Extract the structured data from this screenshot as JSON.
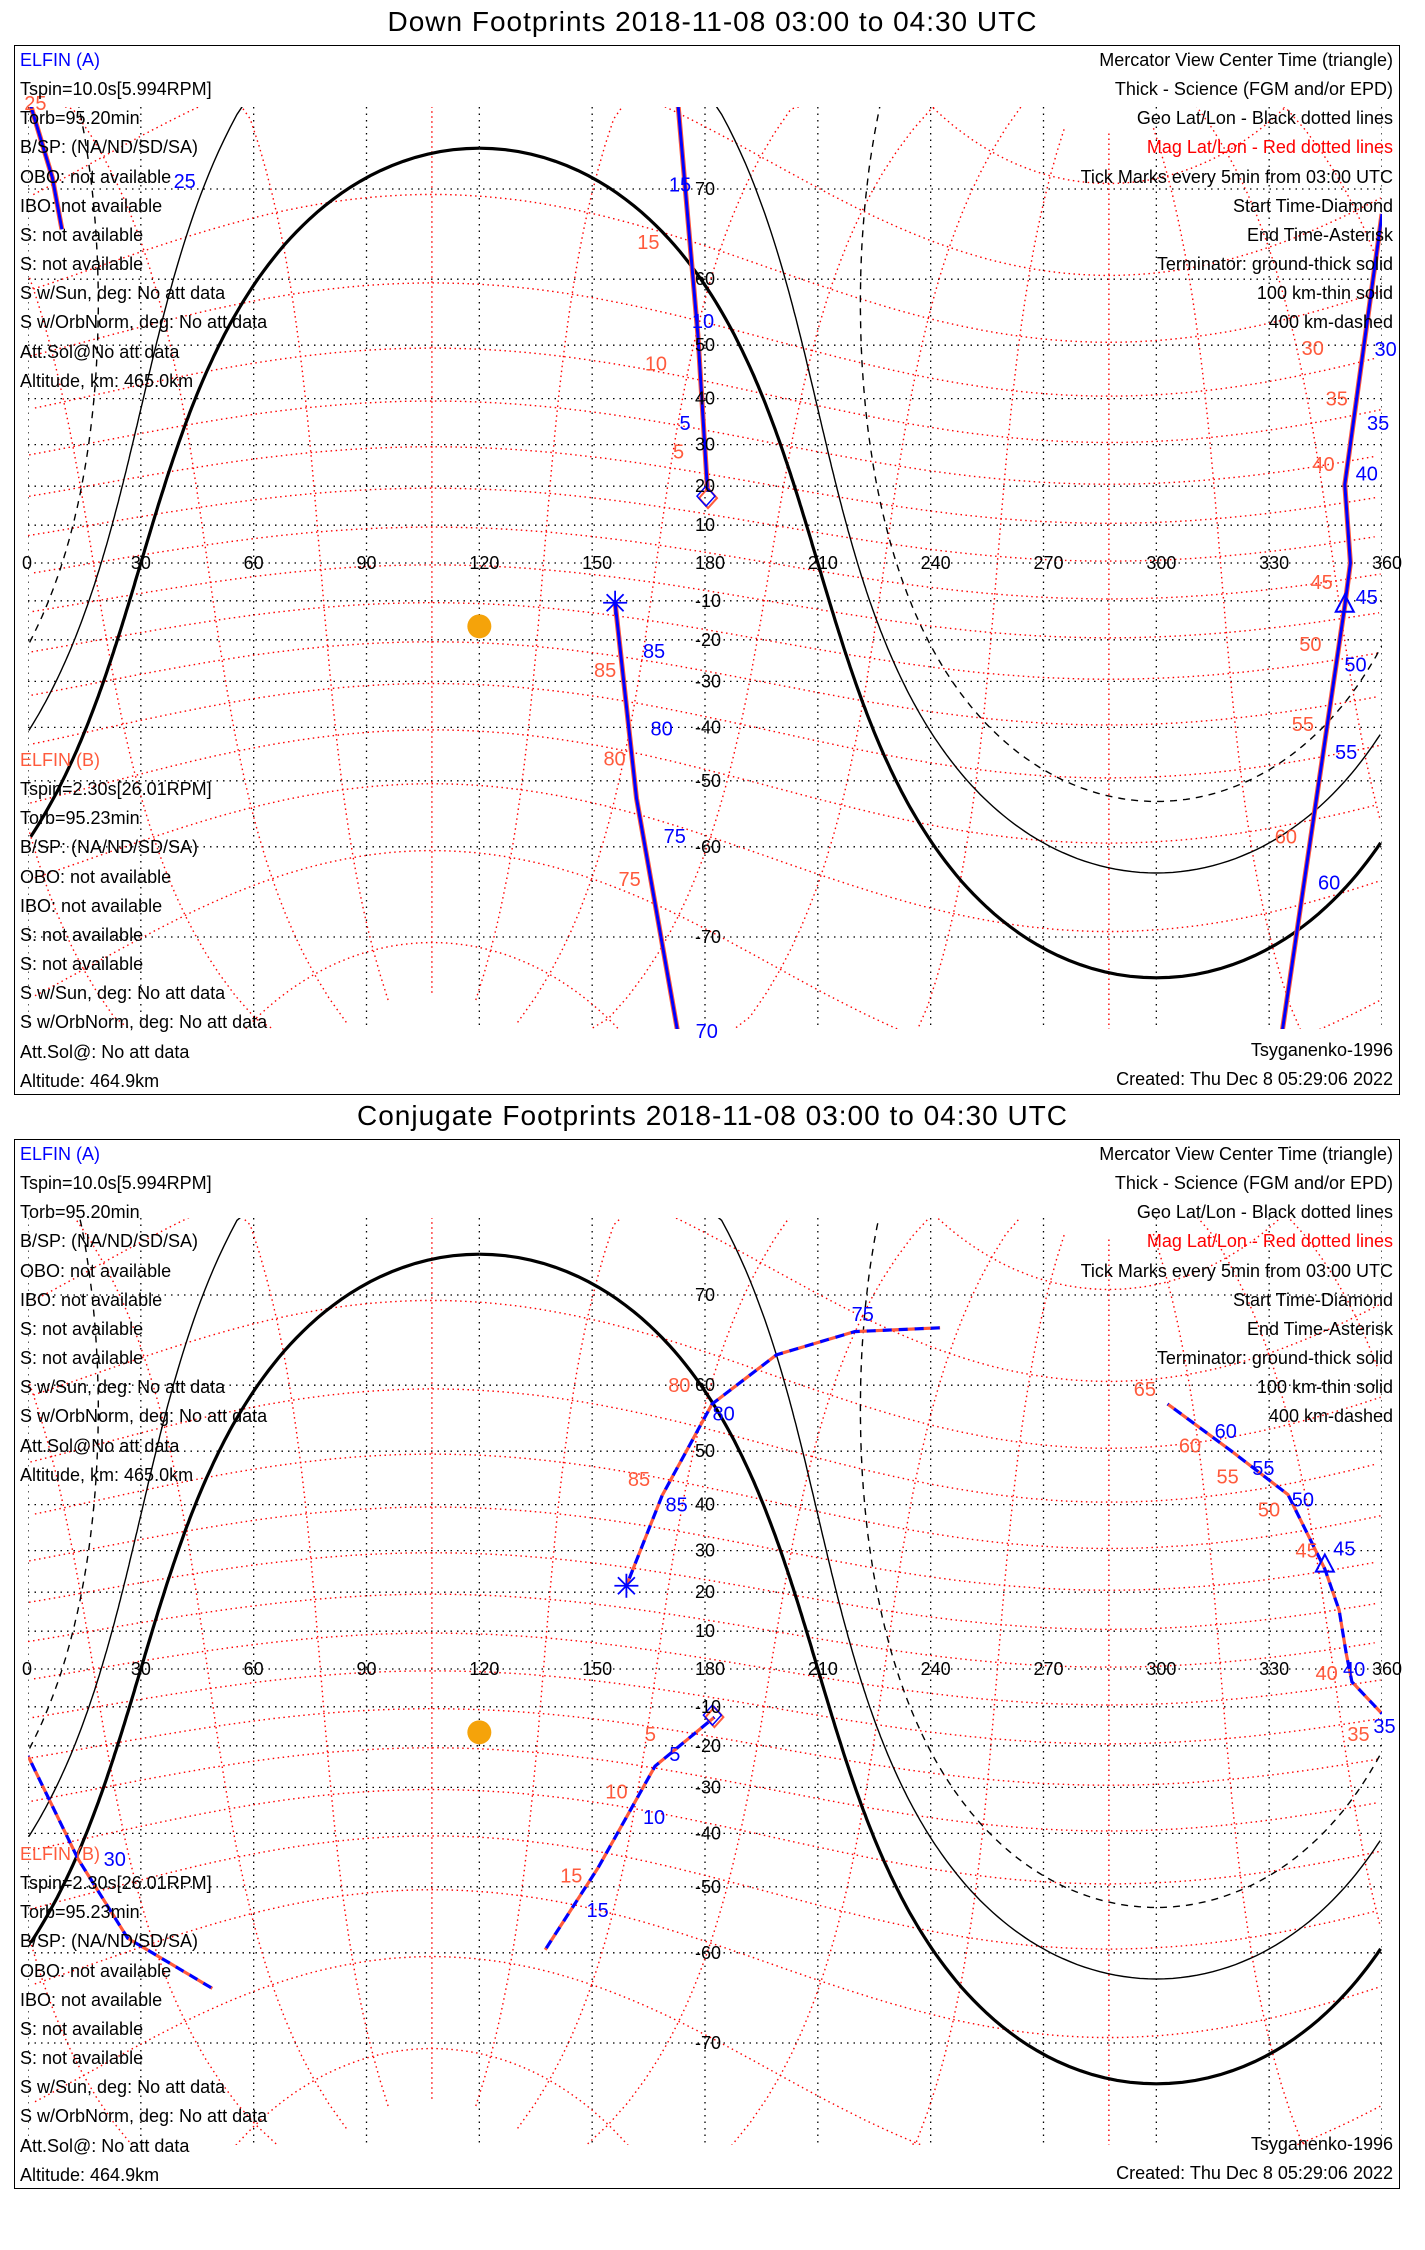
{
  "panels": [
    {
      "title": "Down Footprints 2018-11-08 03:00 to 04:30 UTC",
      "sat_a": {
        "name": "ELFIN (A)",
        "lines": [
          "Tspin=10.0s[5.994RPM]",
          "Torb=95.20min",
          "B/SP: (NA/ND/SD/SA)",
          "OBO: not available",
          "IBO: not available",
          "S: not available",
          "S: not available",
          "S w/Sun, deg: No att data",
          "S w/OrbNorm, deg: No att data",
          "Att.Sol@No att data",
          "Altitude, km: 465.0km"
        ]
      },
      "sat_b": {
        "name": "ELFIN (B)",
        "lines": [
          "Tspin=2.30s[26.01RPM]",
          "Torb=95.23min",
          "B/SP: (NA/ND/SD/SA)",
          "OBO: not available",
          "IBO: not available",
          "S: not available",
          "S: not available",
          "S w/Sun, deg: No att data",
          "S w/OrbNorm, deg: No att data",
          "Att.Sol@: No att data",
          "Altitude: 464.9km"
        ]
      },
      "legend": [
        "Mercator View Center Time (triangle)",
        "Thick - Science (FGM and/or EPD)",
        "Geo Lat/Lon - Black dotted lines",
        "Mag Lat/Lon - Red dotted lines",
        "Tick Marks every 5min from 03:00 UTC",
        "Start Time-Diamond",
        "End Time-Asterisk",
        "Terminator: ground-thick solid",
        "100 km-thin solid",
        "400 km-dashed"
      ],
      "model": "Tsyganenko-1996",
      "created": "Created: Thu Dec  8 05:29:06 2022"
    },
    {
      "title": "Conjugate Footprints 2018-11-08 03:00 to 04:30 UTC",
      "sat_a": {
        "name": "ELFIN (A)",
        "lines": [
          "Tspin=10.0s[5.994RPM]",
          "Torb=95.20min",
          "B/SP: (NA/ND/SD/SA)",
          "OBO: not available",
          "IBO: not available",
          "S: not available",
          "S: not available",
          "S w/Sun, deg: No att data",
          "S w/OrbNorm, deg: No att data",
          "Att.Sol@No att data",
          "Altitude, km: 465.0km"
        ]
      },
      "sat_b": {
        "name": "ELFIN (B)",
        "lines": [
          "Tspin=2.30s[26.01RPM]",
          "Torb=95.23min",
          "B/SP: (NA/ND/SD/SA)",
          "OBO: not available",
          "IBO: not available",
          "S: not available",
          "S: not available",
          "S w/Sun, deg: No att data",
          "S w/OrbNorm, deg: No att data",
          "Att.Sol@: No att data",
          "Altitude: 464.9km"
        ]
      },
      "legend": [
        "Mercator View Center Time (triangle)",
        "Thick - Science (FGM and/or EPD)",
        "Geo Lat/Lon - Black dotted lines",
        "Mag Lat/Lon - Red dotted lines",
        "Tick Marks every 5min from 03:00 UTC",
        "Start Time-Diamond",
        "End Time-Asterisk",
        "Terminator: ground-thick solid",
        "100 km-thin solid",
        "400 km-dashed"
      ],
      "model": "Tsyganenko-1996",
      "created": "Created: Thu Dec  8 05:29:06 2022"
    }
  ],
  "colors": {
    "sat_a": "#0000ff",
    "sat_b": "#ff5a3c",
    "mag_grid": "#ff0000",
    "sun": "#f5a30a"
  },
  "chart_data": [
    {
      "type": "map",
      "projection": "mercator",
      "lon_range": [
        0,
        360
      ],
      "lon_ticks": [
        "0",
        "30",
        "60",
        "90",
        "120",
        "150",
        "180",
        "210",
        "240",
        "270",
        "300",
        "330",
        "360"
      ],
      "lat_ticks": [
        "70",
        "60",
        "50",
        "40",
        "30",
        "20",
        "10",
        "-10",
        "-20",
        "-30",
        "-40",
        "-50",
        "-60",
        "-70"
      ],
      "subsolar": {
        "lat": -16.6,
        "lon": 120
      },
      "terminator_offsets_deg": [
        0,
        10.1,
        20.0
      ],
      "style": "solid",
      "tracks": [
        {
          "points": [
            [
              0.5,
              78
            ],
            [
              6.5,
              71
            ],
            [
              9,
              66
            ]
          ]
        },
        {
          "points": [
            [
              172.8,
              78
            ],
            [
              178.1,
              51.7
            ],
            [
              180.7,
              18.6
            ]
          ]
        },
        {
          "points": [
            [
              156.1,
              -10.5
            ],
            [
              161.8,
              -52.9
            ],
            [
              172.8,
              -78
            ]
          ]
        },
        {
          "points": [
            [
              360,
              67.6
            ],
            [
              350.1,
              20.4
            ],
            [
              351.6,
              0
            ],
            [
              350.1,
              -11.3
            ],
            [
              333.4,
              -78
            ]
          ]
        }
      ],
      "markers": [
        {
          "kind": "diamond",
          "lon": 180.8,
          "lat": 17
        },
        {
          "kind": "asterisk",
          "lon": 156.1,
          "lat": -10.5
        },
        {
          "kind": "triangle",
          "lon": 350.1,
          "lat": -11.3
        }
      ],
      "labels": [
        {
          "text": "25",
          "lon": -1,
          "lat": 76.5,
          "c": "b"
        },
        {
          "text": "25",
          "lon": 6.8,
          "lat": 70.7,
          "c": "a"
        },
        {
          "text": "15",
          "lon": 172,
          "lat": 70.4,
          "c": "a"
        },
        {
          "text": "10",
          "lon": 176.5,
          "lat": 52,
          "c": "a"
        },
        {
          "text": "5",
          "lon": 178,
          "lat": 34.8,
          "c": "a"
        },
        {
          "text": "15",
          "lon": 162,
          "lat": 64.6,
          "c": "b"
        },
        {
          "text": "10",
          "lon": 164,
          "lat": 46.8,
          "c": "b"
        },
        {
          "text": "5",
          "lon": 171.5,
          "lat": 29.8,
          "c": "b"
        },
        {
          "text": "85",
          "lon": 163.5,
          "lat": -22.8,
          "c": "a"
        },
        {
          "text": "80",
          "lon": 165.5,
          "lat": -40.2,
          "c": "a"
        },
        {
          "text": "75",
          "lon": 169,
          "lat": -58.5,
          "c": "a"
        },
        {
          "text": "70",
          "lon": 177.5,
          "lat": -77,
          "c": "a"
        },
        {
          "text": "85",
          "lon": 150.5,
          "lat": -27.4,
          "c": "b"
        },
        {
          "text": "80",
          "lon": 153,
          "lat": -46,
          "c": "b"
        },
        {
          "text": "75",
          "lon": 157,
          "lat": -64,
          "c": "b"
        },
        {
          "text": "30",
          "lon": 358,
          "lat": 52.4,
          "c": "a"
        },
        {
          "text": "35",
          "lon": 356,
          "lat": 34.8,
          "c": "a"
        },
        {
          "text": "40",
          "lon": 353,
          "lat": 23.2,
          "c": "a"
        },
        {
          "text": "45",
          "lon": 353,
          "lat": -9,
          "c": "a"
        },
        {
          "text": "50",
          "lon": 350,
          "lat": -26,
          "c": "a"
        },
        {
          "text": "55",
          "lon": 347.5,
          "lat": -44.8,
          "c": "a"
        },
        {
          "text": "60",
          "lon": 343,
          "lat": -64.4,
          "c": "a"
        },
        {
          "text": "30",
          "lon": 353,
          "lat": 58,
          "c": "b"
        },
        {
          "text": "35",
          "lon": 345,
          "lat": 40,
          "c": "b"
        },
        {
          "text": "40",
          "lon": 341.5,
          "lat": 25.5,
          "c": "b"
        },
        {
          "text": "45",
          "lon": 341,
          "lat": -5,
          "c": "b"
        },
        {
          "text": "50",
          "lon": 338,
          "lat": -21,
          "c": "b"
        },
        {
          "text": "55",
          "lon": 336,
          "lat": -39.3,
          "c": "b"
        },
        {
          "text": "60",
          "lon": 331.5,
          "lat": -58.6,
          "c": "b"
        }
      ]
    },
    {
      "type": "map",
      "projection": "mercator",
      "lon_range": [
        0,
        360
      ],
      "lon_ticks": [
        "0",
        "30",
        "60",
        "90",
        "120",
        "150",
        "180",
        "210",
        "240",
        "270",
        "300",
        "330",
        "360"
      ],
      "lat_ticks": [
        "70",
        "60",
        "50",
        "40",
        "30",
        "20",
        "10",
        "-10",
        "-20",
        "-30",
        "-40",
        "-50",
        "-60",
        "-70"
      ],
      "subsolar": {
        "lat": -16.6,
        "lon": 120
      },
      "terminator_offsets_deg": [
        0,
        10.1,
        20.0
      ],
      "style": "dashed",
      "tracks": [
        {
          "points": [
            [
              182.5,
              -12.7
            ],
            [
              166.7,
              -25
            ],
            [
              151.6,
              -46.6
            ],
            [
              137.5,
              -59.6
            ]
          ]
        },
        {
          "points": [
            [
              159.1,
              21.6
            ],
            [
              168.6,
              41.8
            ],
            [
              181.9,
              57.4
            ],
            [
              199,
              63.8
            ],
            [
              219.8,
              66.4
            ],
            [
              242.5,
              66.8
            ]
          ]
        },
        {
          "points": [
            [
              303,
              57.4
            ],
            [
              320,
              50
            ],
            [
              335,
              42
            ],
            [
              344.8,
              25.7
            ],
            [
              348.6,
              15.5
            ],
            [
              350.5,
              4
            ],
            [
              352,
              -3.4
            ],
            [
              360,
              -11.8
            ]
          ]
        },
        {
          "points": [
            [
              0,
              -22.5
            ],
            [
              13.3,
              -45
            ],
            [
              26.5,
              -58
            ],
            [
              49,
              -64.4
            ]
          ]
        }
      ],
      "markers": [
        {
          "kind": "diamond",
          "lon": 182.5,
          "lat": -12.7
        },
        {
          "kind": "asterisk",
          "lon": 159.1,
          "lat": 21.6
        },
        {
          "kind": "triangle",
          "lon": 344.8,
          "lat": 26.5
        }
      ],
      "labels": [
        {
          "text": "5",
          "lon": 170.5,
          "lat": -22,
          "c": "a"
        },
        {
          "text": "10",
          "lon": 163.5,
          "lat": -36.6,
          "c": "a"
        },
        {
          "text": "15",
          "lon": 148.5,
          "lat": -53.8,
          "c": "a"
        },
        {
          "text": "5",
          "lon": 164,
          "lat": -17,
          "c": "b"
        },
        {
          "text": "10",
          "lon": 153.5,
          "lat": -31,
          "c": "b"
        },
        {
          "text": "15",
          "lon": 141.5,
          "lat": -48,
          "c": "b"
        },
        {
          "text": "85",
          "lon": 169.5,
          "lat": 40,
          "c": "a"
        },
        {
          "text": "80",
          "lon": 182,
          "lat": 56,
          "c": "a"
        },
        {
          "text": "75",
          "lon": 219,
          "lat": 68.2,
          "c": "a"
        },
        {
          "text": "85",
          "lon": 159.5,
          "lat": 45,
          "c": "b"
        },
        {
          "text": "80",
          "lon": 175,
          "lat": 60,
          "c": "b"
        },
        {
          "text": "60",
          "lon": 315.5,
          "lat": 53.3,
          "c": "a"
        },
        {
          "text": "55",
          "lon": 325.5,
          "lat": 47,
          "c": "a"
        },
        {
          "text": "50",
          "lon": 336,
          "lat": 41,
          "c": "a"
        },
        {
          "text": "45",
          "lon": 347,
          "lat": 30.5,
          "c": "a"
        },
        {
          "text": "40",
          "lon": 356,
          "lat": 0,
          "c": "a"
        },
        {
          "text": "35",
          "lon": 362.5,
          "lat": -15,
          "c": "a"
        },
        {
          "text": "65",
          "lon": 294,
          "lat": 59.5,
          "c": "b"
        },
        {
          "text": "60",
          "lon": 306,
          "lat": 51,
          "c": "b"
        },
        {
          "text": "55",
          "lon": 316,
          "lat": 45.5,
          "c": "b"
        },
        {
          "text": "50",
          "lon": 327,
          "lat": 39,
          "c": "b"
        },
        {
          "text": "45",
          "lon": 337,
          "lat": 30,
          "c": "b"
        },
        {
          "text": "40",
          "lon": 345.5,
          "lat": -1,
          "c": "b"
        },
        {
          "text": "35",
          "lon": 354,
          "lat": -17,
          "c": "b"
        },
        {
          "text": "30",
          "lon": 18.5,
          "lat": -45,
          "c": "a"
        }
      ]
    }
  ]
}
